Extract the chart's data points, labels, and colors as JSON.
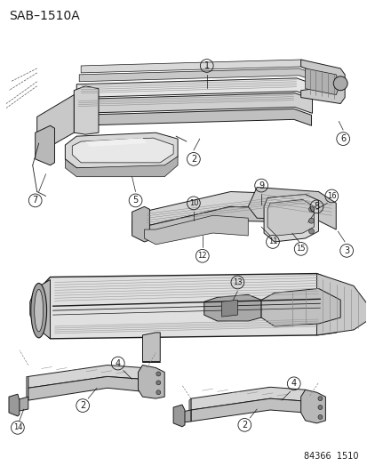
{
  "title": "SAB–1510A",
  "ref_number": "84366  1510",
  "bg": "#f5f5f0",
  "lc": "#1a1a1a",
  "figsize": [
    4.14,
    5.33
  ],
  "dpi": 100,
  "title_fs": 10,
  "ref_fs": 7,
  "label_fs": 7,
  "circ_r": 0.018
}
